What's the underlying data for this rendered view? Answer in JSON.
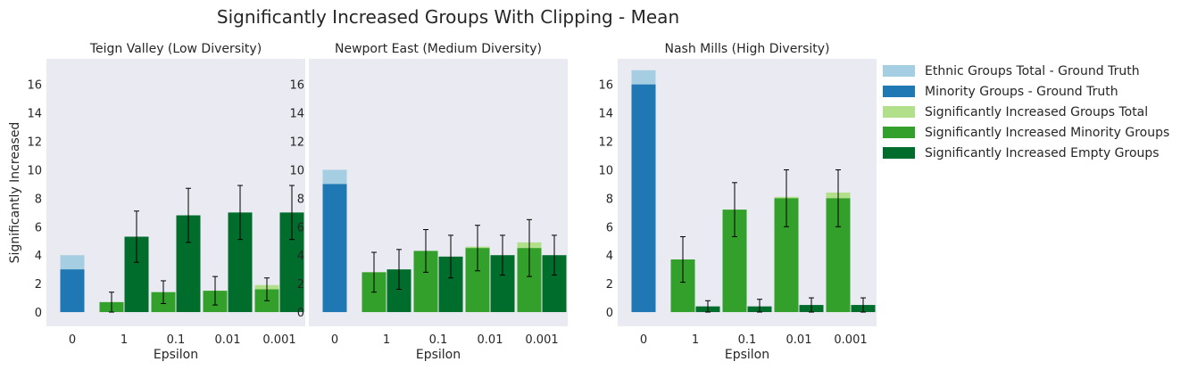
{
  "figure": {
    "title": "Significantly Increased Groups With Clipping - Mean"
  },
  "legend": {
    "placement": "right",
    "entries": [
      {
        "label": "Ethnic Groups Total - Ground Truth",
        "color": "#a6cee3"
      },
      {
        "label": "Minority Groups - Ground Truth",
        "color": "#1f78b4"
      },
      {
        "label": "Significantly Increased Groups Total",
        "color": "#b2df8a"
      },
      {
        "label": "Significantly Increased Minority Groups",
        "color": "#33a02c"
      },
      {
        "label": "Significantly Increased Empty Groups",
        "color": "#006d2c"
      }
    ]
  },
  "chart_data": [
    {
      "type": "bar",
      "title": "Teign Valley (Low Diversity)",
      "xlabel": "Epsilon",
      "ylabel": "Significantly Increased",
      "categories": [
        "0",
        "1",
        "0.1",
        "0.01",
        "0.001"
      ],
      "ylim": [
        -1,
        17.8
      ],
      "yticks": [
        0,
        2,
        4,
        6,
        8,
        10,
        12,
        14,
        16
      ],
      "grid": false,
      "ground_truth": {
        "ethnic_total": 4,
        "minority": 3
      },
      "series": [
        {
          "name": "Significantly Increased Groups Total",
          "values": [
            null,
            0.7,
            1.4,
            1.5,
            1.9
          ]
        },
        {
          "name": "Significantly Increased Minority Groups",
          "values": [
            null,
            0.7,
            1.4,
            1.5,
            1.6
          ],
          "errors": [
            null,
            0.7,
            0.8,
            1.0,
            0.8
          ]
        },
        {
          "name": "Significantly Increased Empty Groups",
          "values": [
            null,
            5.3,
            6.8,
            7.0,
            7.0
          ],
          "errors": [
            null,
            1.8,
            1.9,
            1.9,
            1.9
          ]
        }
      ]
    },
    {
      "type": "bar",
      "title": "Newport East (Medium Diversity)",
      "xlabel": "Epsilon",
      "ylabel": "",
      "categories": [
        "0",
        "1",
        "0.1",
        "0.01",
        "0.001"
      ],
      "ylim": [
        -1,
        17.8
      ],
      "yticks": [
        0,
        2,
        4,
        6,
        8,
        10,
        12,
        14,
        16
      ],
      "grid": false,
      "ground_truth": {
        "ethnic_total": 10,
        "minority": 9
      },
      "series": [
        {
          "name": "Significantly Increased Groups Total",
          "values": [
            null,
            2.8,
            4.3,
            4.6,
            4.9
          ]
        },
        {
          "name": "Significantly Increased Minority Groups",
          "values": [
            null,
            2.8,
            4.3,
            4.5,
            4.5
          ],
          "errors": [
            null,
            1.4,
            1.5,
            1.6,
            2.0
          ]
        },
        {
          "name": "Significantly Increased Empty Groups",
          "values": [
            null,
            3.0,
            3.9,
            4.0,
            4.0
          ],
          "errors": [
            null,
            1.4,
            1.5,
            1.4,
            1.4
          ]
        }
      ]
    },
    {
      "type": "bar",
      "title": "Nash Mills (High Diversity)",
      "xlabel": "Epsilon",
      "ylabel": "",
      "categories": [
        "0",
        "1",
        "0.1",
        "0.01",
        "0.001"
      ],
      "ylim": [
        -1,
        17.8
      ],
      "yticks": [
        0,
        2,
        4,
        6,
        8,
        10,
        12,
        14,
        16
      ],
      "grid": false,
      "ground_truth": {
        "ethnic_total": 17,
        "minority": 16
      },
      "series": [
        {
          "name": "Significantly Increased Groups Total",
          "values": [
            null,
            3.7,
            7.2,
            8.1,
            8.4
          ]
        },
        {
          "name": "Significantly Increased Minority Groups",
          "values": [
            null,
            3.7,
            7.2,
            8.0,
            8.0
          ],
          "errors": [
            null,
            1.6,
            1.9,
            2.0,
            2.0
          ]
        },
        {
          "name": "Significantly Increased Empty Groups",
          "values": [
            null,
            0.4,
            0.4,
            0.5,
            0.5
          ],
          "errors": [
            null,
            0.4,
            0.5,
            0.5,
            0.5
          ]
        }
      ]
    }
  ]
}
